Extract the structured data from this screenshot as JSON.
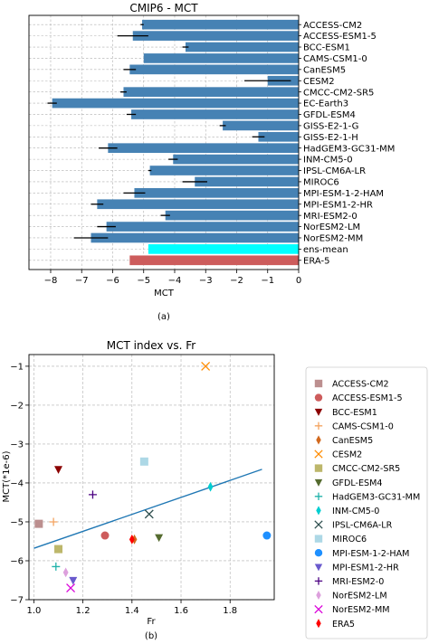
{
  "chart_data": [
    {
      "type": "bar",
      "orientation": "horizontal",
      "title": "CMIP6 - MCT",
      "xlabel": "MCT",
      "xlim": [
        -8.7,
        0
      ],
      "xticks": [
        -8,
        -7,
        -6,
        -5,
        -4,
        -3,
        -2,
        -1,
        0
      ],
      "xtick_labels": [
        "−8",
        "−7",
        "−6",
        "−5",
        "−4",
        "−3",
        "−2",
        "−1",
        "0"
      ],
      "grid": true,
      "caption": "(a)",
      "categories": [
        "ACCESS-CM2",
        "ACCESS-ESM1-5",
        "BCC-ESM1",
        "CAMS-CSM1-0",
        "CanESM5",
        "CESM2",
        "CMCC-CM2-SR5",
        "EC-Earth3",
        "GFDL-ESM4",
        "GISS-E2-1-G",
        "GISS-E2-1-H",
        "HadGEM3-GC31-MM",
        "INM-CM5-0",
        "IPSL-CM6A-LR",
        "MIROC6",
        "MPI-ESM-1-2-HAM",
        "MPI-ESM1-2-HR",
        "MRI-ESM2-0",
        "NorESM2-LM",
        "NorESM2-MM",
        "ens-mean",
        "ERA-5"
      ],
      "values": [
        -5.05,
        -5.35,
        -3.65,
        -5.0,
        -5.45,
        -1.0,
        -5.65,
        -7.95,
        -5.4,
        -2.45,
        -1.3,
        -6.15,
        -4.05,
        -4.8,
        -3.35,
        -5.3,
        -6.5,
        -4.3,
        -6.2,
        -6.7,
        -4.85,
        -5.45
      ],
      "errors": [
        0.05,
        0.5,
        0.1,
        0.0,
        0.2,
        0.75,
        0.1,
        0.15,
        0.15,
        0.1,
        0.2,
        0.3,
        0.15,
        0.05,
        0.4,
        0.35,
        0.2,
        0.15,
        0.3,
        0.55,
        0.0,
        0.0
      ],
      "colors": {
        "model": "#4682b4",
        "ens-mean": "#00ffff",
        "ERA-5": "#cd5c5c"
      }
    },
    {
      "type": "scatter",
      "title": "MCT index vs. Fr",
      "xlabel": "Fr",
      "ylabel": "MCT(*1e-6)",
      "xlim": [
        0.98,
        1.98
      ],
      "ylim": [
        -7.0,
        -0.7
      ],
      "xticks": [
        1.0,
        1.2,
        1.4,
        1.6,
        1.8
      ],
      "xtick_labels": [
        "1.0",
        "1.2",
        "1.4",
        "1.6",
        "1.8"
      ],
      "yticks": [
        -7,
        -6,
        -5,
        -4,
        -3,
        -2,
        -1
      ],
      "ytick_labels": [
        "−7",
        "−6",
        "−5",
        "−4",
        "−3",
        "−2",
        "−1"
      ],
      "grid": true,
      "legend_position": "outside-right",
      "caption": "(b)",
      "regression_line": {
        "x": [
          1.0,
          1.93
        ],
        "y": [
          -5.68,
          -3.65
        ]
      },
      "series": [
        {
          "name": "ACCESS-CM2",
          "x": 1.02,
          "y": -5.05,
          "marker": "square",
          "color": "#bc8f8f"
        },
        {
          "name": "ACCESS-ESM1-5",
          "x": 1.29,
          "y": -5.35,
          "marker": "circle",
          "color": "#cd5c5c"
        },
        {
          "name": "BCC-ESM1",
          "x": 1.1,
          "y": -3.65,
          "marker": "triangle-down",
          "color": "#8b0000"
        },
        {
          "name": "CAMS-CSM1-0",
          "x": 1.08,
          "y": -5.0,
          "marker": "plus",
          "color": "#f4a460"
        },
        {
          "name": "CanESM5",
          "x": 1.41,
          "y": -5.45,
          "marker": "thin-diamond",
          "color": "#d2691e"
        },
        {
          "name": "CESM2",
          "x": 1.7,
          "y": -1.0,
          "marker": "x",
          "color": "#ff8c00"
        },
        {
          "name": "CMCC-CM2-SR5",
          "x": 1.1,
          "y": -5.7,
          "marker": "square",
          "color": "#bdb76b"
        },
        {
          "name": "GFDL-ESM4",
          "x": 1.51,
          "y": -5.4,
          "marker": "triangle-down",
          "color": "#556b2f"
        },
        {
          "name": "HadGEM3-GC31-MM",
          "x": 1.09,
          "y": -6.15,
          "marker": "plus",
          "color": "#20b2aa"
        },
        {
          "name": "INM-CM5-0",
          "x": 1.72,
          "y": -4.1,
          "marker": "thin-diamond",
          "color": "#00ced1"
        },
        {
          "name": "IPSL-CM6A-LR",
          "x": 1.47,
          "y": -4.8,
          "marker": "x",
          "color": "#2f4f4f"
        },
        {
          "name": "MIROC6",
          "x": 1.45,
          "y": -3.45,
          "marker": "square",
          "color": "#add8e6"
        },
        {
          "name": "MPI-ESM-1-2-HAM",
          "x": 1.95,
          "y": -5.35,
          "marker": "circle",
          "color": "#1e90ff"
        },
        {
          "name": "MPI-ESM1-2-HR",
          "x": 1.16,
          "y": -6.5,
          "marker": "triangle-down",
          "color": "#6a5acd"
        },
        {
          "name": "MRI-ESM2-0",
          "x": 1.24,
          "y": -4.3,
          "marker": "plus",
          "color": "#4b0082"
        },
        {
          "name": "NorESM2-LM",
          "x": 1.13,
          "y": -6.3,
          "marker": "thin-diamond",
          "color": "#dda0dd"
        },
        {
          "name": "NorESM2-MM",
          "x": 1.15,
          "y": -6.7,
          "marker": "x",
          "color": "#da00da"
        },
        {
          "name": "ERA5",
          "x": 1.4,
          "y": -5.45,
          "marker": "thin-diamond",
          "color": "#ff0000"
        }
      ]
    }
  ]
}
